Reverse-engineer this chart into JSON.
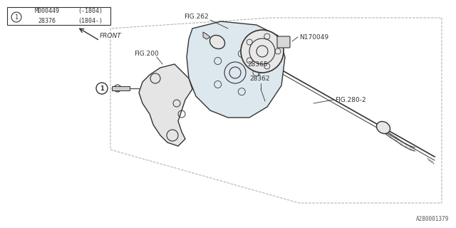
{
  "bg_color": "#ffffff",
  "line_color": "#333333",
  "label_color": "#222222",
  "title_text": "",
  "fig_width": 6.4,
  "fig_height": 3.2,
  "dpi": 100,
  "parts_table": {
    "col1": [
      "M000449",
      "28376"
    ],
    "col2": [
      "(-1804)",
      "(1804-)"
    ],
    "item_num": "1"
  },
  "labels": {
    "fig280": "FIG.280-2",
    "fig200": "FIG.200",
    "fig262": "FIG.262",
    "part28362": "28362",
    "part28365": "28365",
    "partN170049": "N170049",
    "front": "FRONT",
    "diagram_id": "A280001379"
  }
}
